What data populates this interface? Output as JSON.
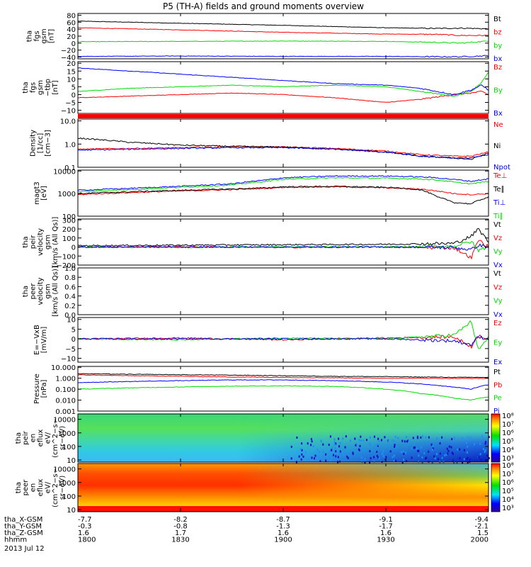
{
  "title": "P5 (TH-A) fields and ground moments overview",
  "date": "2013 Jul 12",
  "orbit": {
    "rows": [
      {
        "label": "tha_X-GSM",
        "values": [
          "-7.7",
          "-8.2",
          "-8.7",
          "-9.1",
          "-9.4"
        ]
      },
      {
        "label": "tha_Y-GSM",
        "values": [
          "-0.3",
          "-0.8",
          "-1.3",
          "-1.7",
          "-2.1"
        ]
      },
      {
        "label": "tha_Z-GSM",
        "values": [
          "1.6",
          "1.7",
          "1.6",
          "1.6",
          "1.5"
        ]
      },
      {
        "label": "hhmm",
        "values": [
          "1800",
          "1830",
          "1900",
          "1930",
          "2000"
        ]
      }
    ]
  },
  "colors": {
    "black": "#000000",
    "red": "#ff0000",
    "green": "#00dd00",
    "blue": "#0000ff"
  },
  "chart_data": [
    {
      "type": "line",
      "id": "fgs_gsm",
      "ylabel": [
        "tha",
        "fgs",
        "gsm",
        "[nT]"
      ],
      "ylim": [
        -45,
        85
      ],
      "yticks": [
        {
          "v": 80,
          "label": "80"
        },
        {
          "v": 60,
          "label": "60"
        },
        {
          "v": 40,
          "label": "40"
        },
        {
          "v": 20,
          "label": "20"
        },
        {
          "v": 0,
          "label": "0"
        },
        {
          "v": -20,
          "label": "−20"
        },
        {
          "v": -40,
          "label": "−40"
        }
      ],
      "x": [
        0,
        30,
        60,
        90,
        105,
        112,
        120
      ],
      "series": [
        {
          "name": "Bt",
          "color": "black",
          "values": [
            63,
            57,
            51,
            44,
            42,
            43,
            41
          ]
        },
        {
          "name": "bz",
          "color": "red",
          "values": [
            44,
            38,
            31,
            26,
            25,
            22,
            22
          ]
        },
        {
          "name": "by",
          "color": "green",
          "values": [
            4,
            5,
            6,
            5,
            2,
            0,
            6
          ]
        },
        {
          "name": "bx",
          "color": "blue",
          "values": [
            -38,
            -37,
            -38,
            -38,
            -39,
            -39,
            -36
          ]
        }
      ]
    },
    {
      "type": "line",
      "id": "fgs_dsl",
      "ylabel": [
        "tha",
        "fgs",
        "gsm",
        "−tbp",
        "[nT]"
      ],
      "ylim": [
        -12,
        21
      ],
      "yticks": [
        {
          "v": 20,
          "label": "20"
        },
        {
          "v": 15,
          "label": "15"
        },
        {
          "v": 10,
          "label": "10"
        },
        {
          "v": 5,
          "label": "5"
        },
        {
          "v": 0,
          "label": "0"
        },
        {
          "v": -5,
          "label": "−5"
        },
        {
          "v": -10,
          "label": "−10"
        }
      ],
      "x": [
        0,
        15,
        30,
        45,
        60,
        75,
        90,
        100,
        110,
        115,
        118,
        120
      ],
      "series": [
        {
          "name": "Bz",
          "color": "red",
          "values": [
            -2,
            -1,
            0,
            1,
            0,
            -2,
            -5,
            -3,
            0,
            1,
            2,
            0
          ]
        },
        {
          "name": "By",
          "color": "green",
          "values": [
            2,
            4,
            5,
            6,
            5,
            6,
            5,
            2,
            -1,
            2,
            8,
            14
          ]
        },
        {
          "name": "Bx",
          "color": "blue",
          "values": [
            17,
            15,
            13,
            11,
            9,
            7,
            6,
            4,
            0,
            3,
            6,
            3
          ]
        }
      ]
    },
    {
      "type": "line",
      "id": "density",
      "scale": "log",
      "ylabel": [
        "Density",
        "[1/cc]",
        "[cm−3]"
      ],
      "ylim": [
        0.1,
        12
      ],
      "yticks": [
        {
          "v": 10,
          "label": "10.0"
        },
        {
          "v": 1,
          "label": "1.0"
        },
        {
          "v": 0.1,
          "label": "0.1"
        }
      ],
      "x": [
        0,
        15,
        30,
        45,
        60,
        75,
        90,
        100,
        110,
        115,
        120
      ],
      "series": [
        {
          "name": "Ne",
          "color": "red",
          "values": [
            0.6,
            0.65,
            0.7,
            0.75,
            0.75,
            0.65,
            0.5,
            0.35,
            0.3,
            0.3,
            0.45
          ]
        },
        {
          "name": "Ni",
          "color": "black",
          "values": [
            1.8,
            1.2,
            0.9,
            0.8,
            0.75,
            0.6,
            0.45,
            0.3,
            0.25,
            0.22,
            0.4
          ]
        },
        {
          "name": "Npot",
          "color": "blue",
          "values": [
            0.55,
            0.6,
            0.65,
            0.7,
            0.7,
            0.6,
            0.45,
            0.3,
            0.25,
            0.25,
            0.35
          ]
        }
      ]
    },
    {
      "type": "line",
      "id": "temperature",
      "scale": "log",
      "ylabel": [
        "magt3",
        "[eV]"
      ],
      "ylim": [
        100,
        11000
      ],
      "yticks": [
        {
          "v": 10000,
          "label": "10000"
        },
        {
          "v": 1000,
          "label": "1000"
        },
        {
          "v": 100,
          "label": "100"
        }
      ],
      "x": [
        0,
        15,
        30,
        45,
        55,
        60,
        75,
        90,
        100,
        105,
        110,
        115,
        120
      ],
      "series": [
        {
          "name": "Te⊥",
          "color": "red",
          "values": [
            900,
            1100,
            1300,
            1500,
            1700,
            1900,
            2000,
            1800,
            1600,
            1300,
            1000,
            900,
            1000
          ]
        },
        {
          "name": "Te∥",
          "color": "black",
          "values": [
            1000,
            1200,
            1400,
            1600,
            1800,
            2000,
            2100,
            1900,
            1500,
            700,
            400,
            350,
            700
          ]
        },
        {
          "name": "Ti⊥",
          "color": "blue",
          "values": [
            1400,
            1700,
            2100,
            2700,
            4000,
            5000,
            6000,
            6000,
            5500,
            5000,
            4200,
            3500,
            4500
          ]
        },
        {
          "name": "Ti∥",
          "color": "green",
          "values": [
            1200,
            1500,
            1900,
            2400,
            3500,
            4300,
            5000,
            4800,
            4500,
            4000,
            3200,
            2700,
            3500
          ]
        }
      ]
    },
    {
      "type": "line",
      "id": "peir_velocity",
      "ylabel": [
        "tha",
        "peir",
        "velocity",
        "gsm",
        "[km/s (All Qs)]"
      ],
      "ylim": [
        -200,
        310
      ],
      "yticks": [
        {
          "v": 300,
          "label": "300"
        },
        {
          "v": 200,
          "label": "200"
        },
        {
          "v": 100,
          "label": "100"
        },
        {
          "v": 0,
          "label": "0"
        },
        {
          "v": -100,
          "label": "−100"
        },
        {
          "v": -200,
          "label": "−200"
        }
      ],
      "x": [
        0,
        30,
        60,
        90,
        110,
        115,
        117,
        120
      ],
      "series": [
        {
          "name": "Vt",
          "color": "black",
          "values": [
            15,
            20,
            25,
            30,
            40,
            120,
            200,
            60
          ]
        },
        {
          "name": "Vz",
          "color": "red",
          "values": [
            0,
            5,
            -5,
            0,
            -10,
            -120,
            80,
            0
          ]
        },
        {
          "name": "Vy",
          "color": "green",
          "values": [
            0,
            -5,
            5,
            0,
            10,
            60,
            -40,
            10
          ]
        },
        {
          "name": "Vx",
          "color": "blue",
          "values": [
            0,
            0,
            0,
            0,
            -5,
            -30,
            20,
            0
          ]
        }
      ]
    },
    {
      "type": "line",
      "id": "peer_velocity",
      "ylabel": [
        "tha",
        "peer",
        "velocity",
        "gsm",
        "[km/s (All Qs)]"
      ],
      "ylim": [
        0,
        1
      ],
      "yticks": [
        {
          "v": 1.0,
          "label": "1.0"
        },
        {
          "v": 0.8,
          "label": "0.8"
        },
        {
          "v": 0.6,
          "label": "0.6"
        },
        {
          "v": 0.4,
          "label": "0.4"
        },
        {
          "v": 0.2,
          "label": "0.2"
        },
        {
          "v": 0.0,
          "label": "0.0"
        }
      ],
      "x": [],
      "series": [
        {
          "name": "Vt",
          "color": "black",
          "values": []
        },
        {
          "name": "Vz",
          "color": "red",
          "values": []
        },
        {
          "name": "Vy",
          "color": "green",
          "values": []
        },
        {
          "name": "Vx",
          "color": "blue",
          "values": []
        }
      ]
    },
    {
      "type": "line",
      "id": "efield",
      "ylabel": [
        "E=−VxB",
        "[mV/m]"
      ],
      "ylim": [
        -12,
        11
      ],
      "yticks": [
        {
          "v": 10,
          "label": "10"
        },
        {
          "v": 5,
          "label": "5"
        },
        {
          "v": 0,
          "label": "0"
        },
        {
          "v": -5,
          "label": "−5"
        },
        {
          "v": -10,
          "label": "−10"
        }
      ],
      "x": [
        0,
        30,
        60,
        90,
        110,
        115,
        117,
        120
      ],
      "series": [
        {
          "name": "Ez",
          "color": "red",
          "values": [
            0,
            0.5,
            -0.5,
            0.5,
            1,
            -4,
            2,
            0
          ]
        },
        {
          "name": "Ey",
          "color": "green",
          "values": [
            0,
            -0.5,
            0.5,
            0,
            2,
            9,
            -6,
            1
          ]
        },
        {
          "name": "Ex",
          "color": "blue",
          "values": [
            0,
            0,
            0,
            0,
            -1,
            -3,
            1,
            0
          ]
        }
      ]
    },
    {
      "type": "line",
      "id": "pressure",
      "scale": "log",
      "ylabel": [
        "Pressure",
        "[nPa]"
      ],
      "ylim": [
        0.001,
        12
      ],
      "yticks": [
        {
          "v": 10,
          "label": "10.000"
        },
        {
          "v": 1,
          "label": "1.000"
        },
        {
          "v": 0.1,
          "label": "0.100"
        },
        {
          "v": 0.01,
          "label": "0.010"
        },
        {
          "v": 0.001,
          "label": "0.001"
        }
      ],
      "x": [
        0,
        15,
        30,
        45,
        60,
        75,
        90,
        100,
        110,
        115,
        120
      ],
      "series": [
        {
          "name": "Pt",
          "color": "black",
          "values": [
            2.6,
            2.3,
            2.1,
            1.9,
            1.7,
            1.5,
            1.4,
            1.3,
            1.2,
            1.2,
            1.2
          ]
        },
        {
          "name": "Pb",
          "color": "red",
          "values": [
            2.0,
            1.7,
            1.5,
            1.3,
            1.2,
            1.1,
            1.0,
            1.0,
            0.95,
            0.95,
            0.95
          ]
        },
        {
          "name": "Pe",
          "color": "green",
          "values": [
            0.1,
            0.13,
            0.16,
            0.19,
            0.2,
            0.18,
            0.1,
            0.04,
            0.015,
            0.01,
            0.02
          ]
        },
        {
          "name": "Pi",
          "color": "blue",
          "values": [
            0.4,
            0.5,
            0.6,
            0.7,
            0.7,
            0.6,
            0.45,
            0.3,
            0.15,
            0.1,
            0.25
          ]
        }
      ]
    },
    {
      "type": "heatmap",
      "id": "peir_spectrogram",
      "ylabel": [
        "tha",
        "peir",
        "en",
        "eflux",
        "eV/",
        "(cm^2−s−",
        "sr−eV)"
      ],
      "scale": "log",
      "ylim": [
        7,
        25000
      ],
      "yticks": [
        {
          "v": 10000,
          "label": "10000"
        },
        {
          "v": 1000,
          "label": "1000"
        },
        {
          "v": 100,
          "label": "100"
        },
        {
          "v": 10,
          "label": "10"
        }
      ],
      "colorbar": {
        "labels": [
          "10⁸",
          "10⁷",
          "10⁶",
          "10⁵",
          "10⁴",
          "10³"
        ]
      }
    },
    {
      "type": "heatmap",
      "id": "peer_spectrogram",
      "ylabel": [
        "tha",
        "peer",
        "en",
        "eflux",
        "eV/",
        "(cm^2−s−",
        "sr−eV)"
      ],
      "scale": "log",
      "ylim": [
        7,
        25000
      ],
      "yticks": [
        {
          "v": 10000,
          "label": "10000"
        },
        {
          "v": 1000,
          "label": "1000"
        },
        {
          "v": 100,
          "label": "100"
        },
        {
          "v": 10,
          "label": "10"
        }
      ],
      "colorbar": {
        "labels": [
          "10⁸",
          "10⁷",
          "10⁶",
          "10⁵",
          "10⁴",
          "10³"
        ]
      }
    }
  ]
}
